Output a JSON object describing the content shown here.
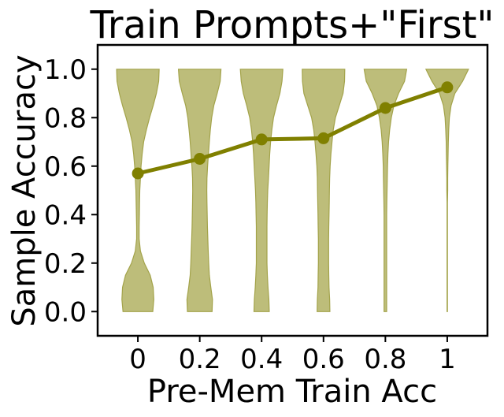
{
  "chart_data": {
    "type": "violin",
    "title": "Train Prompts+\"First\"",
    "xlabel": "Pre-Mem Train Acc",
    "ylabel": "Sample Accuracy",
    "categories": [
      "0",
      "0.2",
      "0.4",
      "0.6",
      "0.8",
      "1"
    ],
    "x": [
      0,
      0.2,
      0.4,
      0.6,
      0.8,
      1.0
    ],
    "xlim": [
      -0.13,
      1.13
    ],
    "ylim": [
      -0.1,
      1.1
    ],
    "yticks": [
      "0.0",
      "0.2",
      "0.4",
      "0.6",
      "0.8",
      "1.0"
    ],
    "series": [
      {
        "kind": "line",
        "color": "#808000",
        "values": [
          0.57,
          0.63,
          0.71,
          0.715,
          0.84,
          0.925
        ]
      }
    ],
    "violin_color": "#bdbd7a",
    "violin_edge": "#a3a34a",
    "violins": [
      {
        "x": 0,
        "y": [
          0,
          0.05,
          0.1,
          0.15,
          0.2,
          0.25,
          0.3,
          0.35,
          0.4,
          0.45,
          0.5,
          0.55,
          0.6,
          0.65,
          0.7,
          0.75,
          0.8,
          0.85,
          0.9,
          0.95,
          1.0
        ],
        "w": [
          0.7,
          0.75,
          0.72,
          0.58,
          0.3,
          0.12,
          0.06,
          0.06,
          0.07,
          0.08,
          0.09,
          0.12,
          0.15,
          0.2,
          0.27,
          0.4,
          0.55,
          0.72,
          0.87,
          0.98,
          1.0
        ]
      },
      {
        "x": 0.2,
        "y": [
          0,
          0.05,
          0.1,
          0.15,
          0.2,
          0.25,
          0.3,
          0.35,
          0.4,
          0.45,
          0.5,
          0.55,
          0.6,
          0.65,
          0.7,
          0.75,
          0.8,
          0.85,
          0.9,
          0.95,
          1.0
        ],
        "w": [
          0.58,
          0.6,
          0.52,
          0.45,
          0.42,
          0.4,
          0.38,
          0.36,
          0.35,
          0.34,
          0.33,
          0.34,
          0.37,
          0.41,
          0.45,
          0.5,
          0.56,
          0.66,
          0.82,
          0.96,
          1.0
        ]
      },
      {
        "x": 0.4,
        "y": [
          0,
          0.05,
          0.1,
          0.15,
          0.2,
          0.25,
          0.3,
          0.35,
          0.4,
          0.45,
          0.5,
          0.55,
          0.6,
          0.65,
          0.7,
          0.75,
          0.8,
          0.85,
          0.9,
          0.95,
          1.0
        ],
        "w": [
          0.36,
          0.34,
          0.3,
          0.27,
          0.25,
          0.25,
          0.25,
          0.25,
          0.26,
          0.27,
          0.29,
          0.32,
          0.35,
          0.38,
          0.42,
          0.48,
          0.56,
          0.7,
          0.86,
          0.96,
          1.0
        ]
      },
      {
        "x": 0.6,
        "y": [
          0,
          0.05,
          0.1,
          0.15,
          0.2,
          0.25,
          0.3,
          0.35,
          0.4,
          0.45,
          0.5,
          0.55,
          0.6,
          0.65,
          0.7,
          0.75,
          0.8,
          0.85,
          0.9,
          0.95,
          1.0
        ],
        "w": [
          0.3,
          0.29,
          0.26,
          0.25,
          0.24,
          0.24,
          0.24,
          0.25,
          0.26,
          0.27,
          0.28,
          0.29,
          0.31,
          0.35,
          0.4,
          0.46,
          0.56,
          0.74,
          0.92,
          0.99,
          1.0
        ]
      },
      {
        "x": 0.8,
        "y": [
          0,
          0.05,
          0.1,
          0.15,
          0.2,
          0.25,
          0.3,
          0.35,
          0.4,
          0.45,
          0.5,
          0.55,
          0.6,
          0.65,
          0.7,
          0.75,
          0.8,
          0.85,
          0.9,
          0.95,
          1.0
        ],
        "w": [
          0.06,
          0.06,
          0.06,
          0.06,
          0.06,
          0.06,
          0.06,
          0.06,
          0.06,
          0.07,
          0.08,
          0.09,
          0.1,
          0.12,
          0.15,
          0.2,
          0.28,
          0.4,
          0.62,
          0.9,
          1.0
        ]
      },
      {
        "x": 1,
        "y": [
          0,
          0.05,
          0.1,
          0.15,
          0.2,
          0.25,
          0.3,
          0.35,
          0.4,
          0.45,
          0.5,
          0.55,
          0.6,
          0.65,
          0.7,
          0.75,
          0.8,
          0.85,
          0.9,
          0.95,
          1.0
        ],
        "w": [
          0.01,
          0.01,
          0.01,
          0.01,
          0.01,
          0.01,
          0.01,
          0.01,
          0.01,
          0.01,
          0.02,
          0.02,
          0.03,
          0.04,
          0.05,
          0.07,
          0.1,
          0.18,
          0.36,
          0.72,
          1.0
        ]
      }
    ]
  }
}
